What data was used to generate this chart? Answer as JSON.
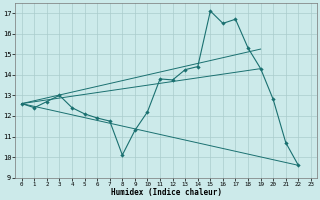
{
  "xlabel": "Humidex (Indice chaleur)",
  "xlim": [
    -0.5,
    23.5
  ],
  "ylim": [
    9,
    17.5
  ],
  "yticks": [
    9,
    10,
    11,
    12,
    13,
    14,
    15,
    16,
    17
  ],
  "xticks": [
    0,
    1,
    2,
    3,
    4,
    5,
    6,
    7,
    8,
    9,
    10,
    11,
    12,
    13,
    14,
    15,
    16,
    17,
    18,
    19,
    20,
    21,
    22,
    23
  ],
  "background_color": "#cceaea",
  "line_color": "#1a7070",
  "grid_color": "#aacccc",
  "main_line": {
    "x": [
      0,
      1,
      2,
      3,
      4,
      5,
      6,
      7,
      8,
      9,
      10,
      11,
      12,
      13,
      14,
      15,
      16,
      17,
      18,
      19,
      20,
      21,
      22
    ],
    "y": [
      12.6,
      12.4,
      12.7,
      13.0,
      12.4,
      12.1,
      11.9,
      11.75,
      10.1,
      11.3,
      12.2,
      13.8,
      13.75,
      14.25,
      14.4,
      17.1,
      16.5,
      16.7,
      15.3,
      14.3,
      12.8,
      10.7,
      9.6
    ]
  },
  "straight_lines": [
    {
      "x": [
        0,
        22
      ],
      "y": [
        12.6,
        9.6
      ]
    },
    {
      "x": [
        0,
        19
      ],
      "y": [
        12.6,
        14.3
      ]
    },
    {
      "x": [
        0,
        19
      ],
      "y": [
        12.6,
        15.25
      ]
    }
  ]
}
